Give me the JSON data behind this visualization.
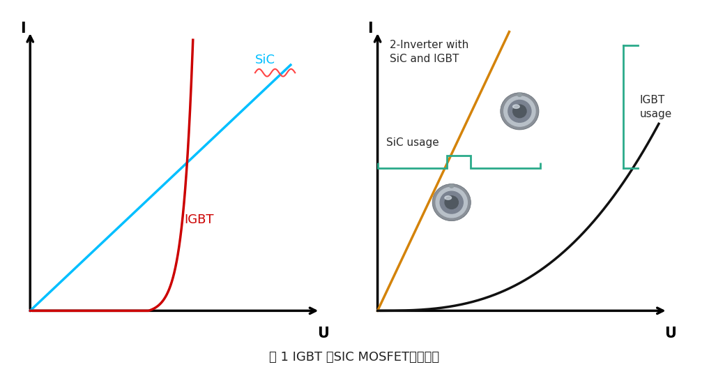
{
  "background_color": "#ffffff",
  "fig_width": 10.17,
  "fig_height": 5.26,
  "title": "图 1 IGBT 和SIC MOSFET导通特性",
  "title_fontsize": 13,
  "left_plot": {
    "sic_color": "#00bfff",
    "igbt_color": "#cc0000",
    "label_sic": "SiC",
    "label_igbt": "IGBT",
    "label_x": "U",
    "label_y": "I",
    "sic_wavy_color": "#ff4444"
  },
  "right_plot": {
    "orange_line_color": "#d4830a",
    "black_curve_color": "#111111",
    "teal_color": "#2aaa8a",
    "label_x": "U",
    "label_y": "I",
    "text_inverter": "2-Inverter with\nSiC and IGBT",
    "text_sic_usage": "SiC usage",
    "text_igbt_usage": "IGBT\nusage"
  }
}
